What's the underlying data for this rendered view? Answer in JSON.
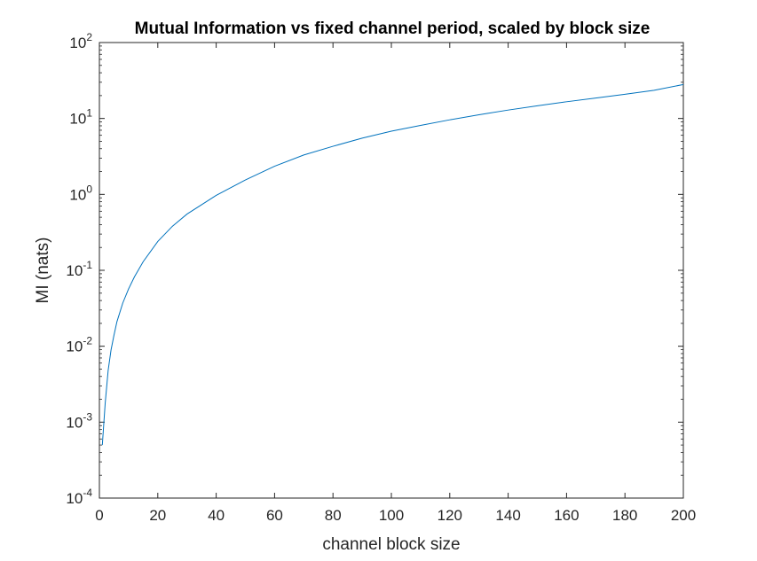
{
  "chart_data": {
    "type": "line",
    "title": "Mutual Information vs fixed channel period, scaled by block size",
    "xlabel": "channel block size",
    "ylabel": "MI (nats)",
    "xlim": [
      0,
      200
    ],
    "ylim": [
      0.0001,
      100
    ],
    "yscale": "log",
    "grid": false,
    "legend": "none",
    "x_ticks": [
      "0",
      "20",
      "40",
      "60",
      "80",
      "100",
      "120",
      "140",
      "160",
      "180",
      "200"
    ],
    "y_ticks": [
      {
        "base": "10",
        "exp": "-4",
        "value": 0.0001
      },
      {
        "base": "10",
        "exp": "-3",
        "value": 0.001
      },
      {
        "base": "10",
        "exp": "-2",
        "value": 0.01
      },
      {
        "base": "10",
        "exp": "-1",
        "value": 0.1
      },
      {
        "base": "10",
        "exp": "0",
        "value": 1
      },
      {
        "base": "10",
        "exp": "1",
        "value": 10
      },
      {
        "base": "10",
        "exp": "2",
        "value": 100
      }
    ],
    "series": [
      {
        "color": "#0072bd",
        "x": [
          1,
          2,
          3,
          4,
          5,
          6,
          8,
          10,
          12,
          15,
          20,
          25,
          30,
          40,
          50,
          60,
          70,
          80,
          90,
          100,
          110,
          120,
          130,
          140,
          150,
          160,
          170,
          180,
          190,
          200
        ],
        "y": [
          0.0005,
          0.0018,
          0.0048,
          0.009,
          0.014,
          0.021,
          0.037,
          0.057,
          0.082,
          0.13,
          0.24,
          0.38,
          0.55,
          0.97,
          1.55,
          2.35,
          3.3,
          4.3,
          5.5,
          6.8,
          8.1,
          9.6,
          11.2,
          12.9,
          14.7,
          16.6,
          18.6,
          20.8,
          23.5,
          28
        ]
      }
    ]
  }
}
